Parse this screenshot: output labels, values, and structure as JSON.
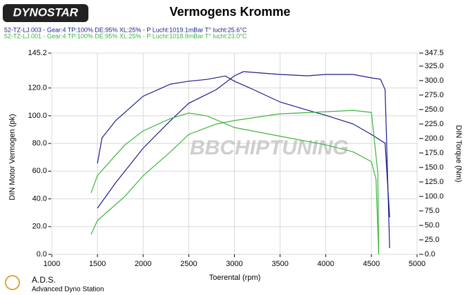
{
  "chart_data": {
    "type": "line",
    "title": "Vermogens Kromme",
    "brand": "DYNOSTAR",
    "watermark": "BBCHIPTUNING",
    "footer_title": "A.D.S.",
    "footer_subtitle": "Advanced Dyno Station",
    "x_label": "Toerental (rpm)",
    "y_label": "DIN Motor Vermogen (pk)",
    "y2_label": "DIN Torque (Nm)",
    "legend": [
      {
        "label": "52-TZ-LJ.003 - Gear:4 TP:100% DE:95% XL:25%  - P Lucht:1019.1mBar T° lucht:25.6°C",
        "color": "#1c1c8a"
      },
      {
        "label": "52-TZ-LJ.001 - Gear:4 TP:100% DE:95% XL:25%  - P Lucht:1018.9mBar T° lucht:23.0°C",
        "color": "#3cb43c"
      }
    ],
    "xlim": [
      1000,
      5000
    ],
    "xticks": [
      1000,
      1500,
      2000,
      2500,
      3000,
      3500,
      4000,
      4500,
      5000
    ],
    "ylim": [
      0,
      145.2
    ],
    "yticks": [
      {
        "value": 0,
        "label": "0.0"
      },
      {
        "value": 20,
        "label": "20.0"
      },
      {
        "value": 40,
        "label": "40.0"
      },
      {
        "value": 60,
        "label": "60.0"
      },
      {
        "value": 80,
        "label": "80.0"
      },
      {
        "value": 100,
        "label": "100.0"
      },
      {
        "value": 120,
        "label": "120.0"
      },
      {
        "value": 145.2,
        "label": "145.2"
      }
    ],
    "y2lim": [
      0,
      347.5
    ],
    "y2ticks": [
      {
        "value": 0,
        "label": "0.0"
      },
      {
        "value": 25,
        "label": "25.0"
      },
      {
        "value": 50,
        "label": "50.0"
      },
      {
        "value": 75,
        "label": "75.0"
      },
      {
        "value": 100,
        "label": "100.0"
      },
      {
        "value": 125,
        "label": "125.0"
      },
      {
        "value": 150,
        "label": "150.0"
      },
      {
        "value": 175,
        "label": "175.0"
      },
      {
        "value": 200,
        "label": "200.0"
      },
      {
        "value": 225,
        "label": "225.0"
      },
      {
        "value": 250,
        "label": "250.0"
      },
      {
        "value": 275,
        "label": "275.0"
      },
      {
        "value": 300,
        "label": "300.0"
      },
      {
        "value": 325,
        "label": "325.0"
      },
      {
        "value": 347.5,
        "label": "347.5"
      }
    ],
    "grid": true,
    "series": [
      {
        "color": "#1c1c8a",
        "x": [
          1500,
          1700,
          2000,
          2300,
          2500,
          2800,
          3000,
          3100,
          3300,
          3500,
          3800,
          4000,
          4300,
          4500,
          4600,
          4650,
          4700
        ],
        "values": [
          33.3,
          51.7,
          76.6,
          96.5,
          109,
          118.8,
          128.8,
          131.8,
          130.8,
          129.8,
          128.8,
          129.8,
          129.8,
          127.3,
          126.3,
          118.8,
          4.5
        ]
      },
      {
        "color": "#1c1c8a",
        "axis": "y2",
        "x": [
          1500,
          1550,
          1700,
          2000,
          2300,
          2500,
          2700,
          2900,
          3000,
          3200,
          3500,
          3800,
          4000,
          4300,
          4500,
          4650,
          4700
        ],
        "values": [
          157,
          201,
          231,
          273,
          294,
          299,
          302,
          308,
          299,
          285,
          263,
          249,
          240,
          225,
          207,
          192,
          64
        ]
      },
      {
        "color": "#3cb43c",
        "x": [
          1430,
          1500,
          1800,
          2000,
          2300,
          2500,
          2800,
          3000,
          3500,
          4000,
          4300,
          4500,
          4570,
          4580
        ],
        "values": [
          14.4,
          24.4,
          41.8,
          56.7,
          74,
          86.5,
          94,
          96.5,
          101.4,
          102.9,
          103.9,
          102.4,
          59,
          0
        ]
      },
      {
        "color": "#3cb43c",
        "axis": "y2",
        "x": [
          1430,
          1500,
          1800,
          2000,
          2300,
          2500,
          2700,
          3000,
          3500,
          4000,
          4300,
          4500,
          4550,
          4580
        ],
        "values": [
          106,
          136,
          189,
          213,
          234.5,
          244,
          239,
          219,
          204,
          189,
          177,
          160,
          130,
          0
        ]
      }
    ]
  }
}
